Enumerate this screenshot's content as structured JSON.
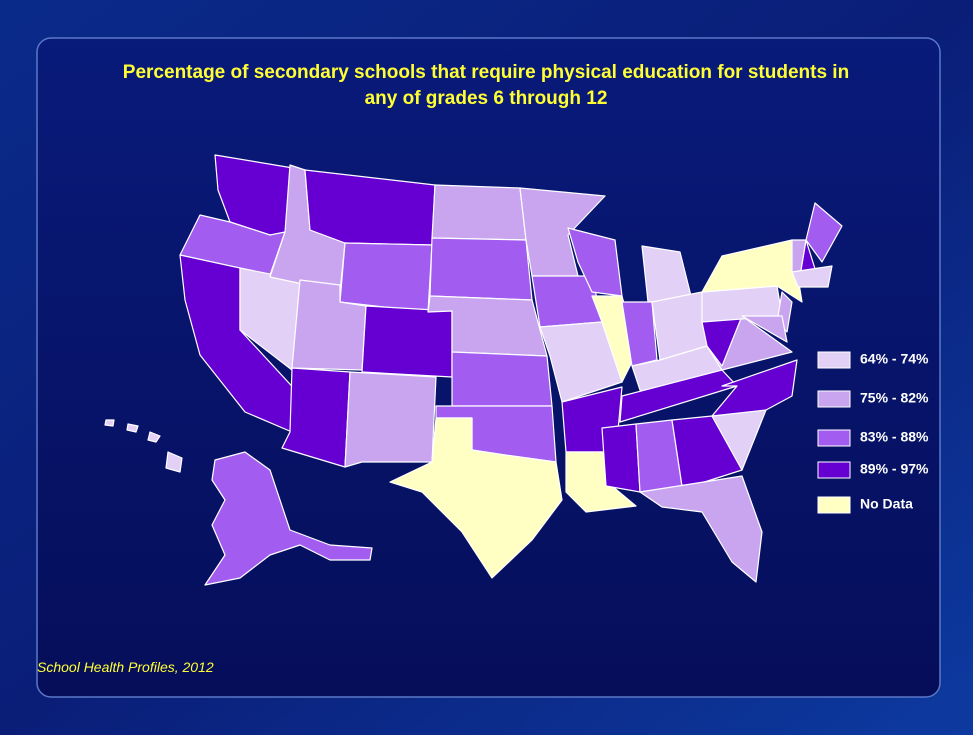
{
  "title": [
    "Percentage of secondary schools that require physical education for students in",
    "any of grades 6 through 12"
  ],
  "legend": [
    {
      "label": "64% - 74%",
      "color": "#e2d0f6"
    },
    {
      "label": "75% - 82%",
      "color": "#c9a5ef"
    },
    {
      "label": "83% - 88%",
      "color": "#a25cf0"
    },
    {
      "label": "89% - 97%",
      "color": "#6600d2"
    },
    {
      "label": "No Data",
      "color": "#ffffc4"
    }
  ],
  "source": "School Health Profiles, 2012"
}
